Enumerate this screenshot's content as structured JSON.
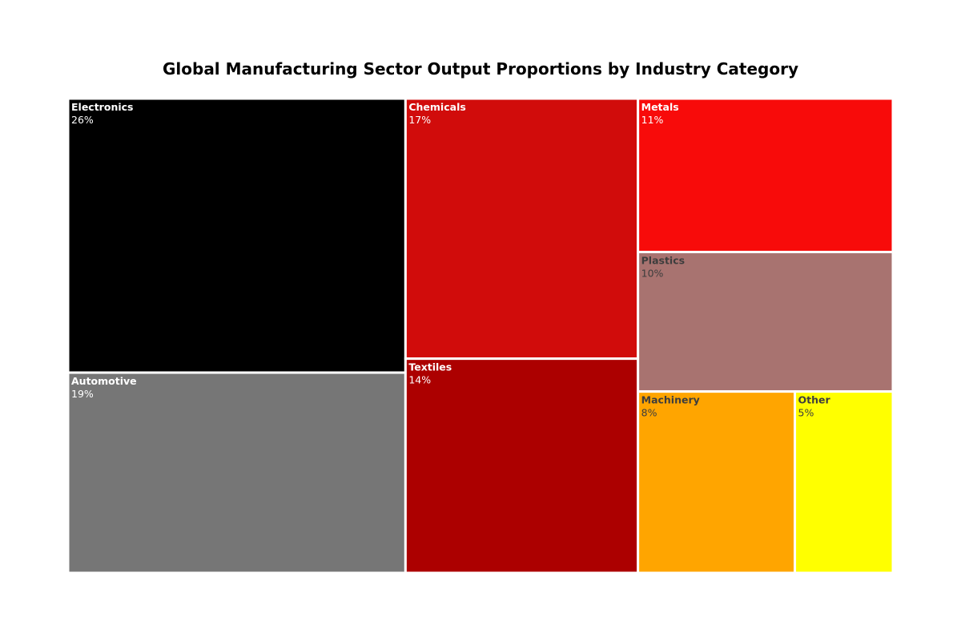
{
  "chart_data": {
    "type": "treemap",
    "title": "Global Manufacturing Sector Output Proportions by Industry Category",
    "unit": "%",
    "legend": "none",
    "grid": false,
    "items": [
      {
        "label": "Electronics",
        "value": 26,
        "display": "26%",
        "color": "#000000",
        "text_color": "#ffffff"
      },
      {
        "label": "Automotive",
        "value": 19,
        "display": "19%",
        "color": "#767676",
        "text_color": "#ffffff"
      },
      {
        "label": "Chemicals",
        "value": 17,
        "display": "17%",
        "color": "#d10c0b",
        "text_color": "#ffffff"
      },
      {
        "label": "Textiles",
        "value": 14,
        "display": "14%",
        "color": "#ac0000",
        "text_color": "#ffffff"
      },
      {
        "label": "Metals",
        "value": 11,
        "display": "11%",
        "color": "#f80b0a",
        "text_color": "#ffffff"
      },
      {
        "label": "Plastics",
        "value": 10,
        "display": "10%",
        "color": "#a87370",
        "text_color": "#3d3d3d"
      },
      {
        "label": "Machinery",
        "value": 8,
        "display": "8%",
        "color": "#ffa500",
        "text_color": "#3d3d3d"
      },
      {
        "label": "Other",
        "value": 5,
        "display": "5%",
        "color": "#ffff00",
        "text_color": "#3d3d3d"
      }
    ]
  }
}
